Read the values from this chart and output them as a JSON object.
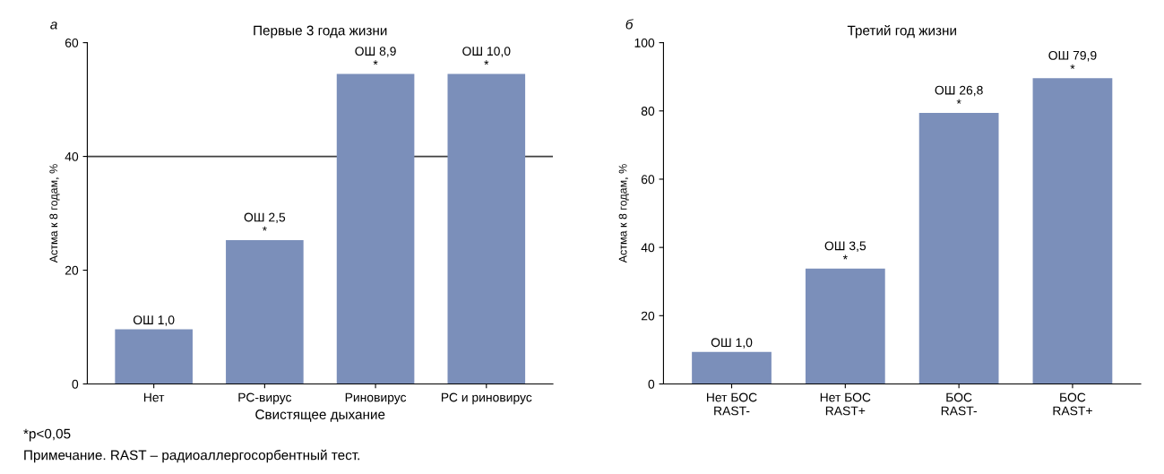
{
  "chart_data": [
    {
      "type": "bar",
      "title": "Первые 3 года жизни",
      "xlabel": "Свистящее дыхание",
      "ylabel": "Астма к 8 годам, %",
      "categories": [
        "Нет",
        "РС-вирус",
        "Риновирус",
        "РС и риновирус"
      ],
      "series": [
        {
          "color": "#7b8fba",
          "values": [
            9.6,
            25.3,
            54.5,
            54.5
          ]
        }
      ],
      "value_labels": [
        "ОШ 1,0",
        "ОШ 2,5\n*",
        "ОШ 8,9\n*",
        "ОШ 10,0\n*"
      ],
      "ylim": [
        0,
        60
      ],
      "yticks": [
        0,
        20,
        40,
        60
      ],
      "grid": false,
      "ref_lines": [
        {
          "axis": "y",
          "value": 40,
          "color": "#404040"
        }
      ],
      "annotations": [
        "а",
        "*p<0,05",
        "Примечание. RAST – радиоаллергосорбентный тест."
      ]
    },
    {
      "type": "bar",
      "title": "Третий год жизни",
      "ylabel": "Астма к 8 годам, %",
      "categories": [
        "Нет БОС\nRAST-",
        "Нет БОС\nRAST+",
        "БОС\nRAST-",
        "БОС\nRAST+"
      ],
      "series": [
        {
          "color": "#7b8fba",
          "values": [
            9.4,
            33.8,
            79.4,
            89.6
          ]
        }
      ],
      "value_labels": [
        "ОШ 1,0",
        "ОШ 3,5\n*",
        "ОШ 26,8\n*",
        "ОШ 79,9\n*"
      ],
      "ylim": [
        0,
        100
      ],
      "yticks": [
        0,
        20,
        40,
        60,
        80,
        100
      ],
      "grid": false,
      "annotations": [
        "б"
      ]
    }
  ]
}
